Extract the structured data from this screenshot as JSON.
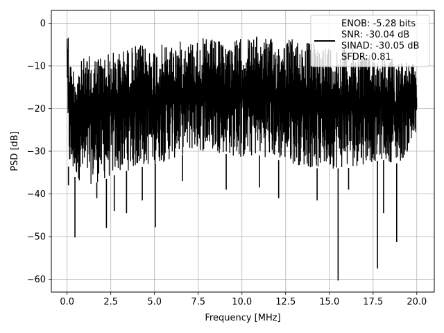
{
  "chart_data": {
    "type": "line",
    "xlabel": "Frequency [MHz]",
    "ylabel": "PSD [dB]",
    "xlim": [
      -0.9,
      21.0
    ],
    "ylim": [
      -63.0,
      3.0
    ],
    "x_ticks": [
      0.0,
      2.5,
      5.0,
      7.5,
      10.0,
      12.5,
      15.0,
      17.5,
      20.0
    ],
    "x_tick_labels": [
      "0.0",
      "2.5",
      "5.0",
      "7.5",
      "10.0",
      "12.5",
      "15.0",
      "17.5",
      "20.0"
    ],
    "y_ticks": [
      0,
      -10,
      -20,
      -30,
      -40,
      -50,
      -60
    ],
    "y_tick_labels": [
      "0",
      "−10",
      "−20",
      "−30",
      "−40",
      "−50",
      "−60"
    ],
    "grid": true,
    "legend_position": "top-right",
    "series": [
      {
        "name": "ENOB: -5.28 bits\nSNR: -30.04 dB\nSINAD: -30.05 dB\nSFDR: 0.81",
        "color": "#000000",
        "envelope": {
          "x": [
            0.0,
            0.05,
            0.2,
            0.5,
            1.0,
            2.0,
            3.0,
            4.0,
            5.0,
            6.0,
            7.0,
            8.0,
            9.0,
            10.0,
            11.0,
            12.0,
            13.0,
            14.0,
            15.0,
            16.0,
            17.0,
            18.0,
            19.0,
            20.0
          ],
          "upper": [
            -1.0,
            0.0,
            -9.0,
            -10.0,
            -8.0,
            -7.0,
            -6.5,
            -5.0,
            -5.5,
            -4.5,
            -4.0,
            -3.5,
            -4.5,
            -3.5,
            -3.0,
            -4.0,
            -3.5,
            -4.5,
            -5.0,
            -5.5,
            -6.5,
            -8.0,
            -8.0,
            -10.0
          ],
          "lower": [
            -10.0,
            -33.0,
            -36.0,
            -36.0,
            -38.0,
            -37.0,
            -35.0,
            -34.0,
            -33.0,
            -32.0,
            -30.0,
            -30.0,
            -30.5,
            -32.0,
            -31.0,
            -32.0,
            -33.0,
            -34.0,
            -34.0,
            -34.0,
            -33.0,
            -32.0,
            -33.0,
            -27.0
          ]
        },
        "dips": [
          {
            "x": 0.08,
            "y": -38.0
          },
          {
            "x": 0.45,
            "y": -50.2
          },
          {
            "x": 1.7,
            "y": -41.0
          },
          {
            "x": 2.25,
            "y": -48.0
          },
          {
            "x": 2.7,
            "y": -44.0
          },
          {
            "x": 3.4,
            "y": -44.5
          },
          {
            "x": 4.3,
            "y": -41.5
          },
          {
            "x": 5.05,
            "y": -47.8
          },
          {
            "x": 6.6,
            "y": -37.0
          },
          {
            "x": 9.1,
            "y": -39.0
          },
          {
            "x": 11.0,
            "y": -38.5
          },
          {
            "x": 12.1,
            "y": -41.0
          },
          {
            "x": 14.3,
            "y": -41.5
          },
          {
            "x": 15.5,
            "y": -60.3
          },
          {
            "x": 16.1,
            "y": -39.0
          },
          {
            "x": 17.75,
            "y": -57.5
          },
          {
            "x": 18.1,
            "y": -44.5
          },
          {
            "x": 18.85,
            "y": -51.3
          }
        ]
      }
    ]
  }
}
